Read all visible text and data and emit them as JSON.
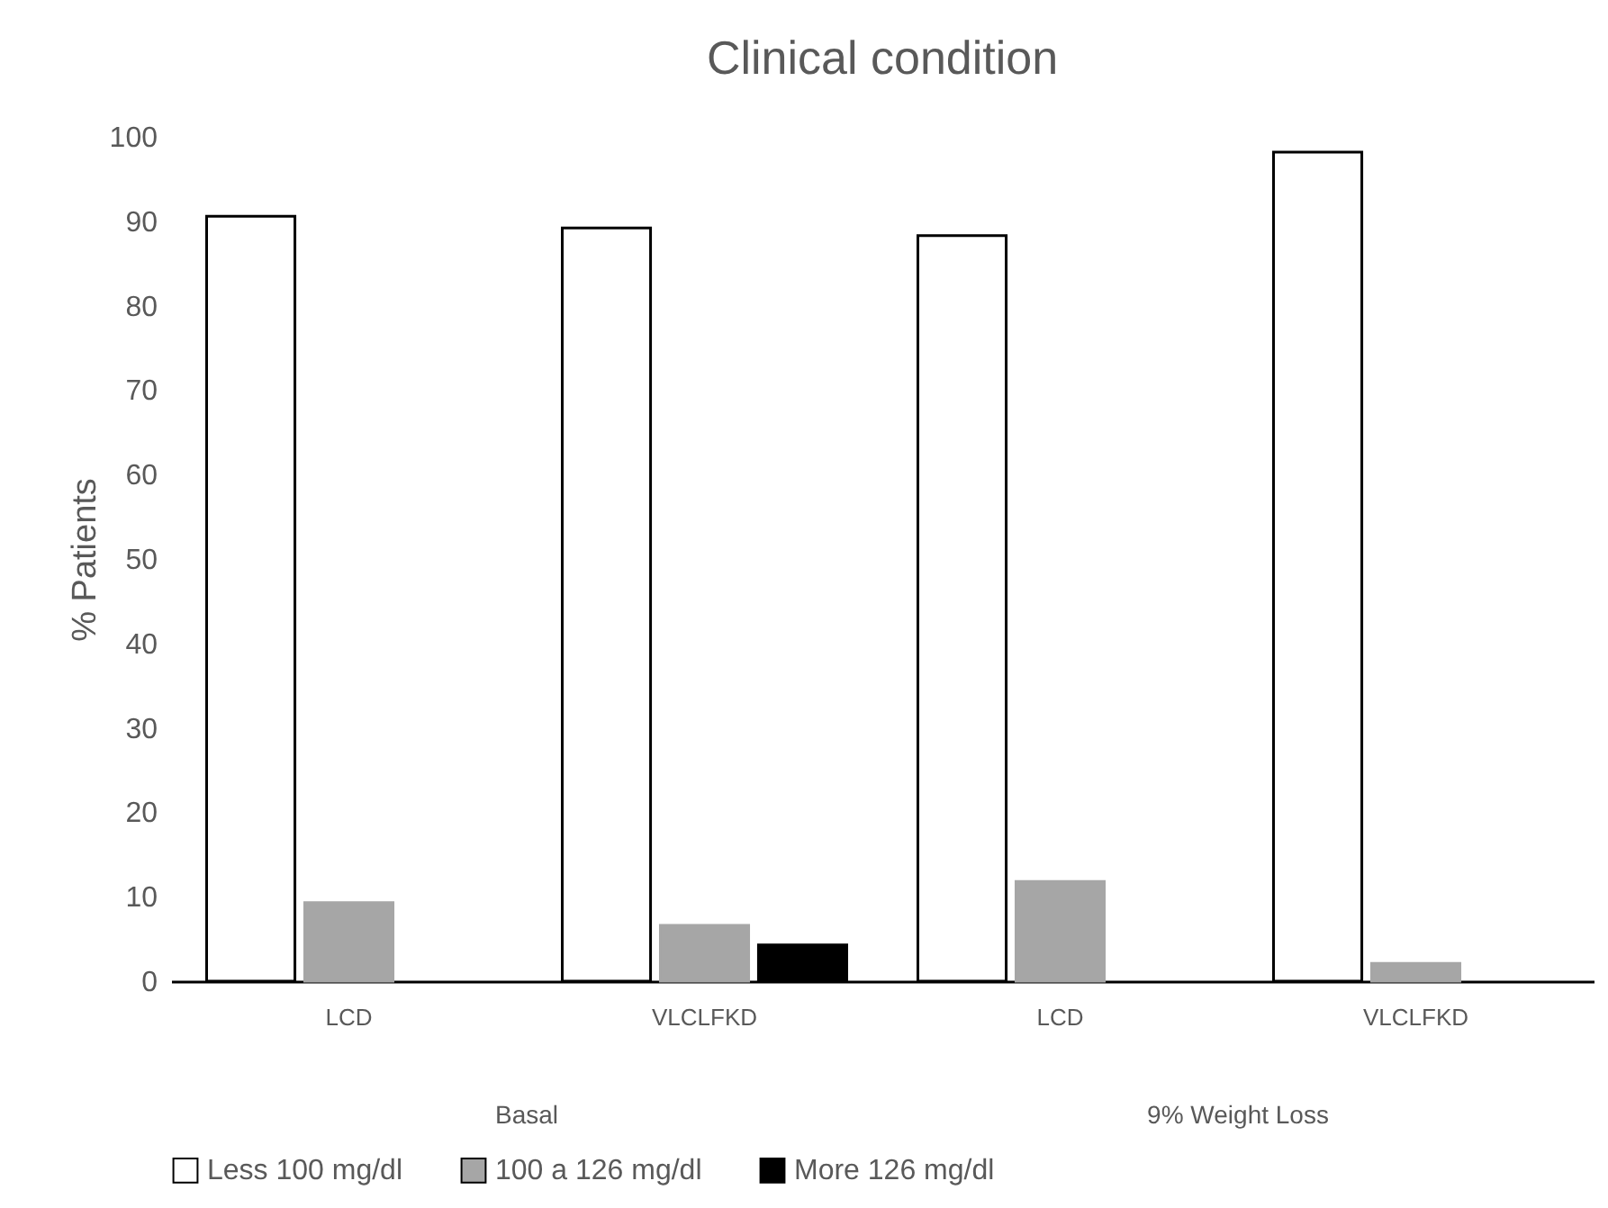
{
  "chart_data": {
    "type": "bar",
    "title": "Clinical condition",
    "ylabel": "% Patients",
    "categories": [
      "LCD",
      "VLCLFKD",
      "LCD",
      "VLCLFKD"
    ],
    "series": [
      {
        "name": "Less 100 mg/dl",
        "color": "#ffffff",
        "values": [
          90.6,
          89.2,
          88.3,
          98.2
        ]
      },
      {
        "name": "100 a 126 mg/dl",
        "color": "#a6a6a6",
        "values": [
          9.3,
          6.6,
          11.8,
          2.1
        ]
      },
      {
        "name": "More 126 mg/dl",
        "color": "#000000",
        "values": [
          null,
          4.3,
          null,
          null
        ]
      }
    ],
    "annotations": [
      "Basal",
      "9% Weight Loss"
    ],
    "ylim": [
      0,
      100
    ],
    "yticks": [
      0,
      10,
      20,
      30,
      40,
      50,
      60,
      70,
      80,
      90,
      100
    ],
    "grid": false,
    "legend": "bottom"
  }
}
